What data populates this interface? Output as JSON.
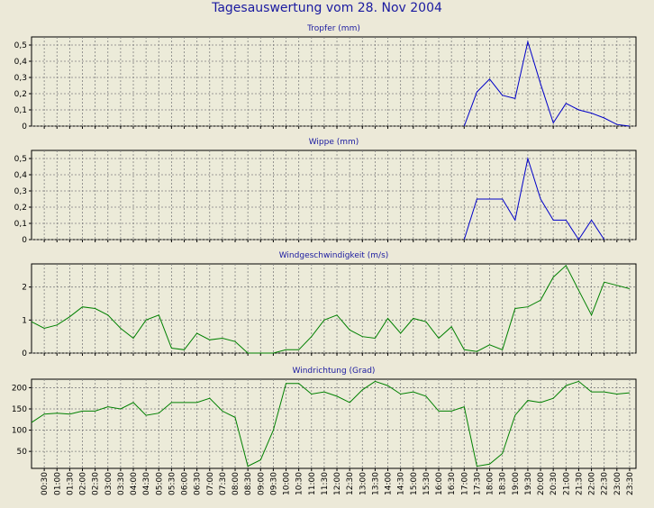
{
  "title": "Tagesauswertung vom 28. Nov 2004",
  "colors": {
    "background": "#ECE9D8",
    "plot_bg": "#ECEBD9",
    "blue": "#0000C8",
    "green": "#008000",
    "title": "#1a1aa0"
  },
  "chart_data": [
    {
      "type": "line",
      "title": "Tropfer (mm)",
      "color": "#0000C8",
      "ylim": [
        0,
        0.55
      ],
      "yticks": [
        0,
        0.1,
        0.2,
        0.3,
        0.4,
        0.5
      ],
      "ytick_labels": [
        "0",
        "0,1",
        "0,2",
        "0,3",
        "0,4",
        "0,5"
      ],
      "grid": true,
      "x": [
        "17:00",
        "17:30",
        "18:00",
        "18:30",
        "19:00",
        "19:30",
        "20:00",
        "20:30",
        "21:00",
        "21:30",
        "22:00",
        "22:30",
        "23:00",
        "23:30"
      ],
      "values": [
        0,
        0.21,
        0.29,
        0.19,
        0.17,
        0.52,
        0.26,
        0.02,
        0.14,
        0.1,
        0.08,
        0.05,
        0.01,
        0
      ]
    },
    {
      "type": "line",
      "title": "Wippe (mm)",
      "color": "#0000C8",
      "ylim": [
        0,
        0.55
      ],
      "yticks": [
        0,
        0.1,
        0.2,
        0.3,
        0.4,
        0.5
      ],
      "ytick_labels": [
        "0",
        "0,1",
        "0,2",
        "0,3",
        "0,4",
        "0,5"
      ],
      "grid": true,
      "x": [
        "17:00",
        "17:30",
        "18:00",
        "18:30",
        "19:00",
        "19:30",
        "20:00",
        "20:30",
        "21:00",
        "21:30",
        "22:00",
        "22:30"
      ],
      "values": [
        0,
        0.25,
        0.25,
        0.25,
        0.12,
        0.5,
        0.25,
        0.12,
        0.12,
        0,
        0.12,
        0
      ]
    },
    {
      "type": "line",
      "title": "Windgeschwindigkeit (m/s)",
      "color": "#008000",
      "ylim": [
        0,
        2.7
      ],
      "yticks": [
        0,
        1,
        2
      ],
      "ytick_labels": [
        "0",
        "1",
        "2"
      ],
      "grid": true,
      "x": [
        "00:00",
        "00:30",
        "01:00",
        "01:30",
        "02:00",
        "02:30",
        "03:00",
        "03:30",
        "04:00",
        "04:30",
        "05:00",
        "05:30",
        "06:00",
        "06:30",
        "07:00",
        "07:30",
        "08:00",
        "08:30",
        "09:00",
        "09:30",
        "10:00",
        "10:30",
        "11:00",
        "11:30",
        "12:00",
        "12:30",
        "13:00",
        "13:30",
        "14:00",
        "14:30",
        "15:00",
        "15:30",
        "16:00",
        "16:30",
        "17:00",
        "17:30",
        "18:00",
        "18:30",
        "19:00",
        "19:30",
        "20:00",
        "20:30",
        "21:00",
        "21:30",
        "22:00",
        "22:30",
        "23:00",
        "23:30"
      ],
      "values": [
        0.95,
        0.75,
        0.85,
        1.1,
        1.4,
        1.35,
        1.15,
        0.75,
        0.45,
        1.0,
        1.15,
        0.15,
        0.1,
        0.6,
        0.4,
        0.45,
        0.35,
        0,
        0,
        0,
        0.1,
        0.1,
        0.5,
        1.0,
        1.15,
        0.7,
        0.5,
        0.45,
        1.05,
        0.6,
        1.05,
        0.95,
        0.45,
        0.8,
        0.1,
        0.05,
        0.25,
        0.1,
        1.35,
        1.4,
        1.6,
        2.3,
        2.65,
        1.9,
        1.15,
        2.15,
        2.05,
        1.95
      ]
    },
    {
      "type": "line",
      "title": "Windrichtung (Grad)",
      "color": "#008000",
      "ylim": [
        10,
        220
      ],
      "yticks": [
        50,
        100,
        150,
        200
      ],
      "ytick_labels": [
        "50",
        "100",
        "150",
        "200"
      ],
      "grid": true,
      "x": [
        "00:00",
        "00:30",
        "01:00",
        "01:30",
        "02:00",
        "02:30",
        "03:00",
        "03:30",
        "04:00",
        "04:30",
        "05:00",
        "05:30",
        "06:00",
        "06:30",
        "07:00",
        "07:30",
        "08:00",
        "08:30",
        "09:00",
        "09:30",
        "10:00",
        "10:30",
        "11:00",
        "11:30",
        "12:00",
        "12:30",
        "13:00",
        "13:30",
        "14:00",
        "14:30",
        "15:00",
        "15:30",
        "16:00",
        "16:30",
        "17:00",
        "17:30",
        "18:00",
        "18:30",
        "19:00",
        "19:30",
        "20:00",
        "20:30",
        "21:00",
        "21:30",
        "22:00",
        "22:30",
        "23:00",
        "23:30"
      ],
      "values": [
        118,
        138,
        140,
        138,
        145,
        145,
        155,
        150,
        165,
        135,
        140,
        165,
        165,
        165,
        175,
        145,
        130,
        15,
        30,
        100,
        210,
        210,
        185,
        190,
        180,
        165,
        195,
        215,
        205,
        185,
        190,
        180,
        145,
        145,
        155,
        15,
        20,
        45,
        135,
        170,
        165,
        175,
        205,
        215,
        190,
        190,
        185,
        188
      ]
    }
  ],
  "x_axis": {
    "tick_labels": [
      "00:30",
      "01:00",
      "01:30",
      "02:00",
      "02:30",
      "03:00",
      "03:30",
      "04:00",
      "04:30",
      "05:00",
      "05:30",
      "06:00",
      "06:30",
      "07:00",
      "07:30",
      "08:00",
      "08:30",
      "09:00",
      "09:30",
      "10:00",
      "10:30",
      "11:00",
      "11:30",
      "12:00",
      "12:30",
      "13:00",
      "13:30",
      "14:00",
      "14:30",
      "15:00",
      "15:30",
      "16:00",
      "16:30",
      "17:00",
      "17:30",
      "18:00",
      "18:30",
      "19:00",
      "19:30",
      "20:00",
      "20:30",
      "21:00",
      "21:30",
      "22:00",
      "22:30",
      "23:00",
      "23:30"
    ]
  }
}
